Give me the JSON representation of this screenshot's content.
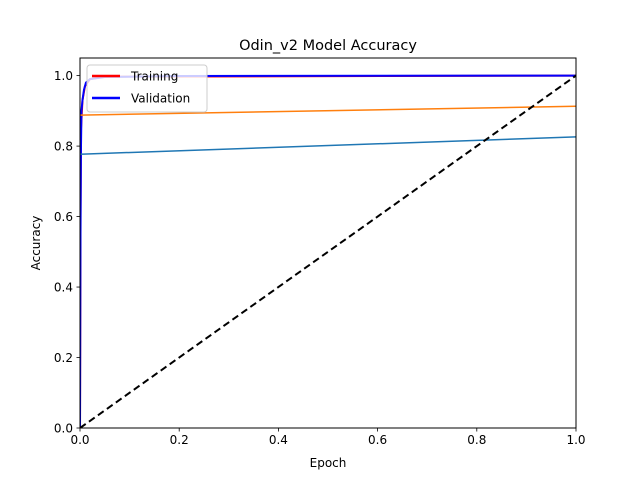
{
  "chart_data": {
    "type": "line",
    "title": "Odin_v2 Model Accuracy",
    "xlabel": "Epoch",
    "ylabel": "Accuracy",
    "xlim": [
      0,
      1
    ],
    "ylim": [
      0,
      1.05
    ],
    "xticks": [
      "0.0",
      "0.2",
      "0.4",
      "0.6",
      "0.8",
      "1.0"
    ],
    "yticks": [
      "0.0",
      "0.2",
      "0.4",
      "0.6",
      "0.8",
      "1.0"
    ],
    "grid": false,
    "legend_position": "upper-left",
    "legend": [
      {
        "label": "Training",
        "color": "#ff0000"
      },
      {
        "label": "Validation",
        "color": "#0000ff"
      }
    ],
    "series": [
      {
        "name": "Training",
        "color": "#ff0000",
        "x": [
          0,
          0.001,
          0.002,
          0.005,
          0.01,
          0.02,
          0.05,
          1.0
        ],
        "y": [
          0,
          0.6,
          0.85,
          0.93,
          0.97,
          0.99,
          0.997,
          1.0
        ]
      },
      {
        "name": "Validation",
        "color": "#0000ff",
        "x": [
          0,
          0.001,
          0.002,
          0.003,
          0.005,
          0.008,
          0.012,
          0.02,
          0.05,
          0.2,
          1.0
        ],
        "y": [
          0,
          0.55,
          0.8,
          0.9,
          0.93,
          0.96,
          0.98,
          0.99,
          0.996,
          0.999,
          1.0
        ]
      },
      {
        "color": "#ff7f0e",
        "x": [
          0,
          1
        ],
        "y": [
          0.888,
          0.913
        ]
      },
      {
        "color": "#1f77b4",
        "x": [
          0,
          1
        ],
        "y": [
          0.777,
          0.826
        ]
      },
      {
        "color": "#000000",
        "dashed": true,
        "x": [
          0,
          1
        ],
        "y": [
          0,
          1
        ]
      }
    ]
  }
}
